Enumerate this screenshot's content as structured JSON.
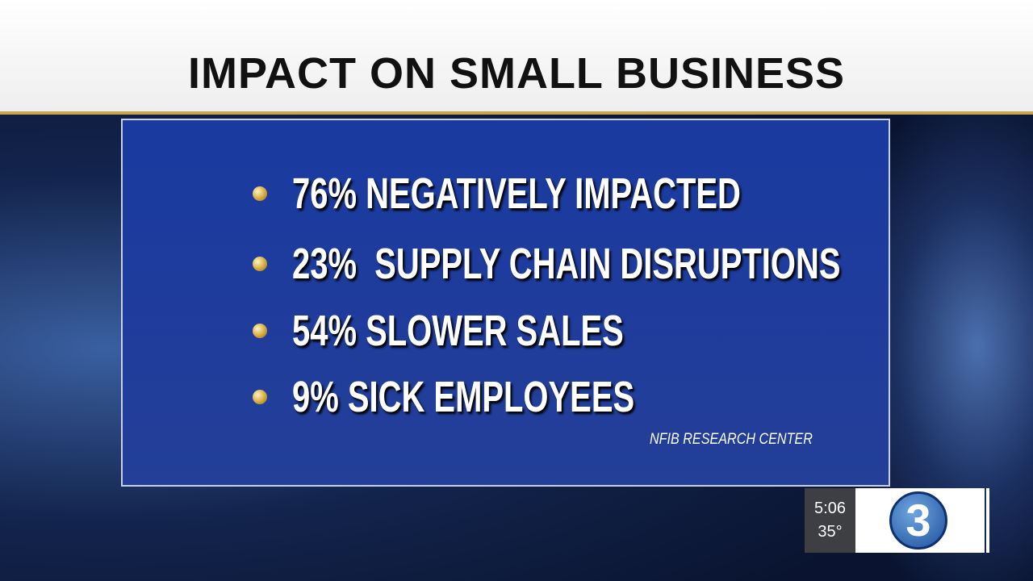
{
  "header": {
    "title": "IMPACT ON SMALL BUSINESS"
  },
  "bullets": [
    "76% NEGATIVELY IMPACTED",
    "23%  SUPPLY CHAIN DISRUPTIONS",
    "54% SLOWER SALES",
    "9% SICK EMPLOYEES"
  ],
  "source": "NFIB RESEARCH CENTER",
  "bug": {
    "time": "5:06",
    "temperature": "35°",
    "logo": "3"
  }
}
